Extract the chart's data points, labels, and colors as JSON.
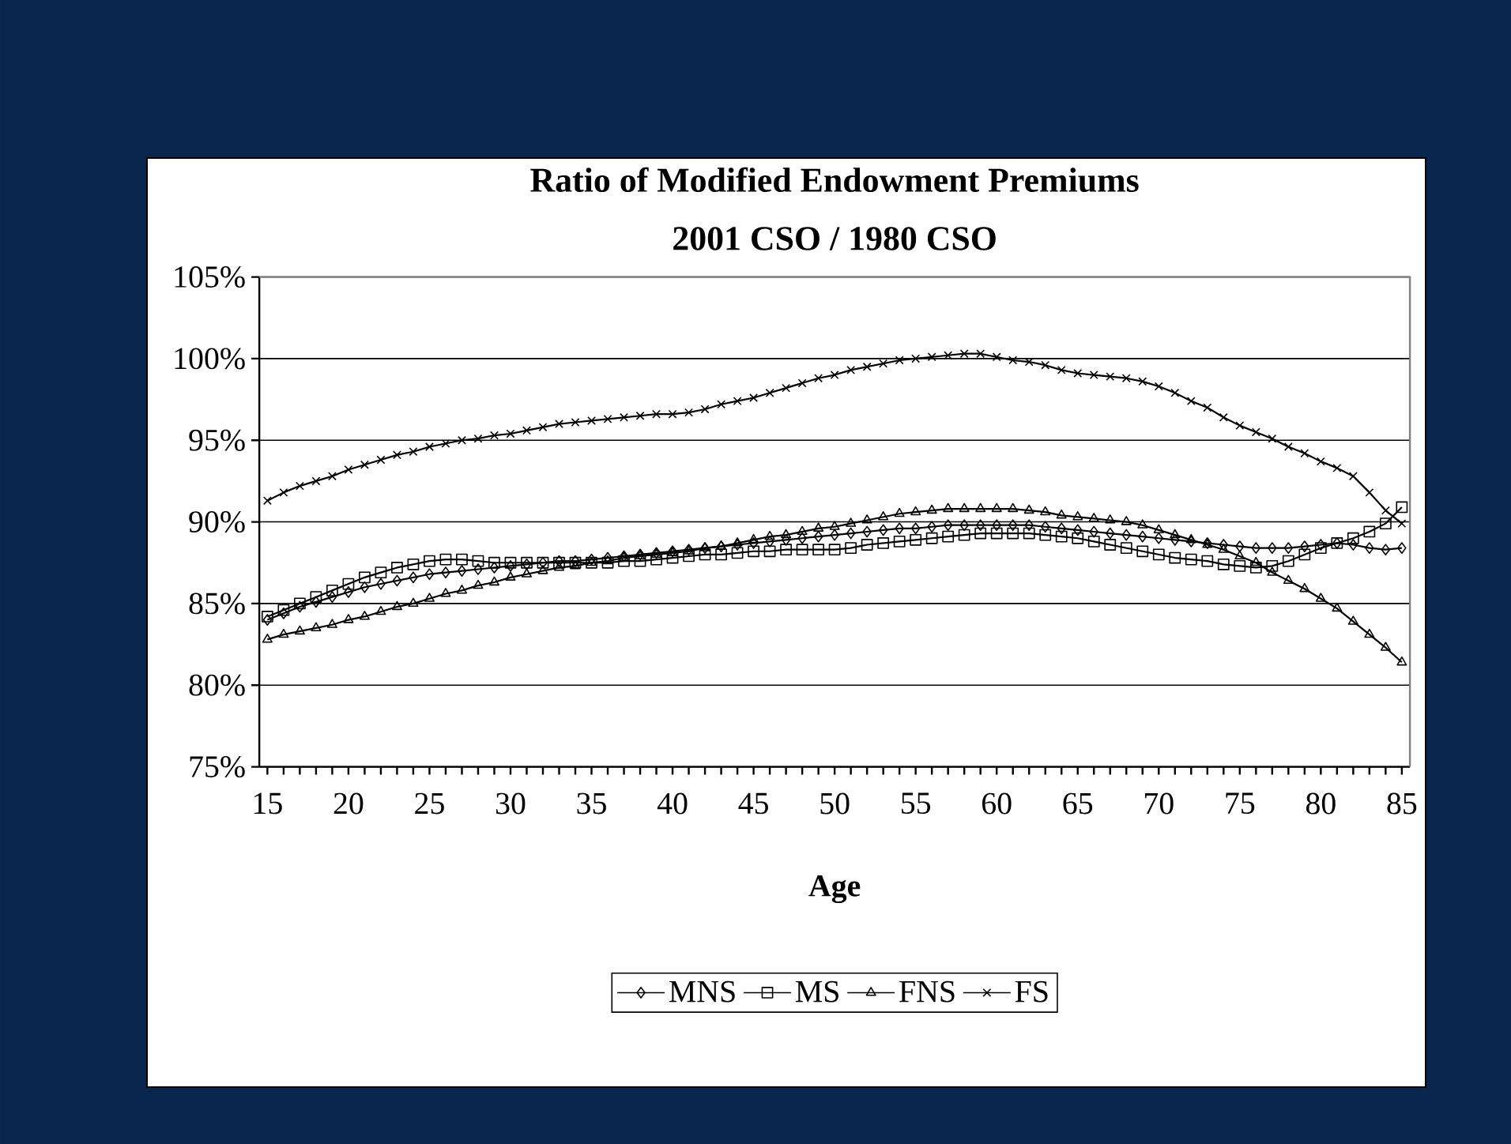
{
  "chart_data": {
    "type": "line",
    "title": "Ratio of Modified Endowment Premiums",
    "subtitle": "2001 CSO / 1980 CSO",
    "xlabel": "Age",
    "x": [
      15,
      16,
      17,
      18,
      19,
      20,
      21,
      22,
      23,
      24,
      25,
      26,
      27,
      28,
      29,
      30,
      31,
      32,
      33,
      34,
      35,
      36,
      37,
      38,
      39,
      40,
      41,
      42,
      43,
      44,
      45,
      46,
      47,
      48,
      49,
      50,
      51,
      52,
      53,
      54,
      55,
      56,
      57,
      58,
      59,
      60,
      61,
      62,
      63,
      64,
      65,
      66,
      67,
      68,
      69,
      70,
      71,
      72,
      73,
      74,
      75,
      76,
      77,
      78,
      79,
      80,
      81,
      82,
      83,
      84,
      85
    ],
    "xlim": [
      14.5,
      85.5
    ],
    "xticks": [
      15,
      20,
      25,
      30,
      35,
      40,
      45,
      50,
      55,
      60,
      65,
      70,
      75,
      80,
      85
    ],
    "ylim": [
      75,
      105
    ],
    "yticks": [
      {
        "value": 75,
        "label": "75%"
      },
      {
        "value": 80,
        "label": "80%"
      },
      {
        "value": 85,
        "label": "85%"
      },
      {
        "value": 90,
        "label": "90%"
      },
      {
        "value": 95,
        "label": "95%"
      },
      {
        "value": 100,
        "label": "100%"
      },
      {
        "value": 105,
        "label": "105%"
      }
    ],
    "grid": "y",
    "legend": "bottom",
    "line_style": "solid",
    "series": [
      {
        "name": "MNS",
        "color": "#000000",
        "marker": "diamond",
        "values": [
          84.0,
          84.4,
          84.8,
          85.1,
          85.4,
          85.7,
          86.0,
          86.2,
          86.4,
          86.6,
          86.8,
          86.9,
          87.0,
          87.1,
          87.2,
          87.3,
          87.4,
          87.5,
          87.6,
          87.6,
          87.7,
          87.8,
          87.9,
          88.0,
          88.1,
          88.2,
          88.3,
          88.4,
          88.5,
          88.6,
          88.7,
          88.8,
          88.9,
          89.0,
          89.1,
          89.2,
          89.3,
          89.4,
          89.5,
          89.6,
          89.6,
          89.7,
          89.8,
          89.8,
          89.8,
          89.8,
          89.8,
          89.8,
          89.7,
          89.6,
          89.5,
          89.4,
          89.3,
          89.2,
          89.1,
          89.0,
          88.9,
          88.8,
          88.7,
          88.6,
          88.5,
          88.4,
          88.4,
          88.4,
          88.5,
          88.6,
          88.7,
          88.6,
          88.4,
          88.3,
          88.4
        ]
      },
      {
        "name": "MS",
        "color": "#000000",
        "marker": "square",
        "values": [
          84.2,
          84.6,
          85.0,
          85.4,
          85.8,
          86.2,
          86.6,
          86.9,
          87.2,
          87.4,
          87.6,
          87.7,
          87.7,
          87.6,
          87.5,
          87.5,
          87.5,
          87.5,
          87.5,
          87.5,
          87.5,
          87.5,
          87.6,
          87.6,
          87.7,
          87.8,
          87.9,
          88.0,
          88.0,
          88.1,
          88.2,
          88.2,
          88.3,
          88.3,
          88.3,
          88.3,
          88.4,
          88.6,
          88.7,
          88.8,
          88.9,
          89.0,
          89.1,
          89.2,
          89.3,
          89.3,
          89.3,
          89.3,
          89.2,
          89.1,
          89.0,
          88.8,
          88.6,
          88.4,
          88.2,
          88.0,
          87.8,
          87.7,
          87.6,
          87.4,
          87.3,
          87.2,
          87.3,
          87.6,
          88.0,
          88.4,
          88.7,
          89.0,
          89.4,
          89.9,
          90.9
        ]
      },
      {
        "name": "FNS",
        "color": "#000000",
        "marker": "triangle",
        "values": [
          82.8,
          83.1,
          83.3,
          83.5,
          83.7,
          84.0,
          84.2,
          84.5,
          84.8,
          85.0,
          85.3,
          85.6,
          85.8,
          86.1,
          86.3,
          86.6,
          86.8,
          87.0,
          87.2,
          87.3,
          87.5,
          87.6,
          87.8,
          87.9,
          88.0,
          88.1,
          88.2,
          88.4,
          88.5,
          88.7,
          88.9,
          89.1,
          89.2,
          89.4,
          89.6,
          89.7,
          89.9,
          90.1,
          90.3,
          90.5,
          90.6,
          90.7,
          90.8,
          90.8,
          90.8,
          90.8,
          90.8,
          90.7,
          90.6,
          90.4,
          90.3,
          90.2,
          90.1,
          90.0,
          89.8,
          89.5,
          89.2,
          88.9,
          88.6,
          88.3,
          87.9,
          87.5,
          86.9,
          86.4,
          85.9,
          85.3,
          84.7,
          83.9,
          83.1,
          82.3,
          81.4
        ]
      },
      {
        "name": "FS",
        "color": "#000000",
        "marker": "cross",
        "values": [
          91.3,
          91.8,
          92.2,
          92.5,
          92.8,
          93.2,
          93.5,
          93.8,
          94.1,
          94.3,
          94.6,
          94.8,
          95.0,
          95.1,
          95.3,
          95.4,
          95.6,
          95.8,
          96.0,
          96.1,
          96.2,
          96.3,
          96.4,
          96.5,
          96.6,
          96.6,
          96.7,
          96.9,
          97.2,
          97.4,
          97.6,
          97.9,
          98.2,
          98.5,
          98.8,
          99.0,
          99.3,
          99.5,
          99.7,
          99.9,
          100.0,
          100.1,
          100.2,
          100.3,
          100.3,
          100.1,
          99.9,
          99.8,
          99.6,
          99.3,
          99.1,
          99.0,
          98.9,
          98.8,
          98.6,
          98.3,
          97.9,
          97.4,
          97.0,
          96.4,
          95.9,
          95.5,
          95.1,
          94.6,
          94.2,
          93.7,
          93.3,
          92.8,
          91.8,
          90.7,
          89.9
        ]
      }
    ]
  }
}
